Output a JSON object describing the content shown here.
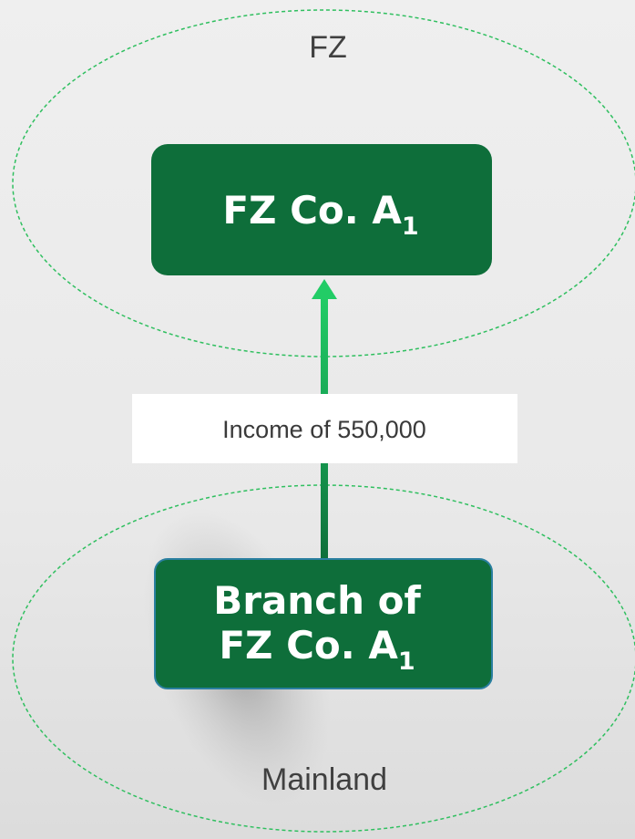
{
  "regions": [
    {
      "label": "FZ"
    },
    {
      "label": "Mainland"
    }
  ],
  "nodes": [
    {
      "label": "FZ Co. A",
      "subscript": "1"
    },
    {
      "label_lines": [
        "Branch of",
        "FZ Co. A"
      ],
      "subscript": "1"
    }
  ],
  "edge": {
    "label": "Income of 550,000"
  }
}
